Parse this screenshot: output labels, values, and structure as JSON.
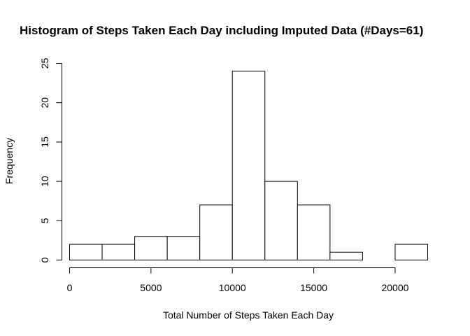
{
  "chart_data": {
    "type": "histogram",
    "title": "Histogram of Steps Taken Each Day including Imputed Data (#Days=61)",
    "xlabel": "Total Number of Steps Taken Each Day",
    "ylabel": "Frequency",
    "bins": [
      {
        "start": 0,
        "end": 2000,
        "count": 2
      },
      {
        "start": 2000,
        "end": 4000,
        "count": 2
      },
      {
        "start": 4000,
        "end": 6000,
        "count": 3
      },
      {
        "start": 6000,
        "end": 8000,
        "count": 3
      },
      {
        "start": 8000,
        "end": 10000,
        "count": 7
      },
      {
        "start": 10000,
        "end": 12000,
        "count": 24
      },
      {
        "start": 12000,
        "end": 14000,
        "count": 10
      },
      {
        "start": 14000,
        "end": 16000,
        "count": 7
      },
      {
        "start": 16000,
        "end": 18000,
        "count": 1
      },
      {
        "start": 18000,
        "end": 20000,
        "count": 0
      },
      {
        "start": 20000,
        "end": 22000,
        "count": 2
      }
    ],
    "xlim": [
      0,
      22000
    ],
    "ylim": [
      0,
      25
    ],
    "x_ticks": [
      0,
      5000,
      10000,
      15000,
      20000
    ],
    "y_ticks": [
      0,
      5,
      10,
      15,
      20,
      25
    ],
    "bar_fill": "#ffffff",
    "bar_stroke": "#000000",
    "grid": false,
    "legend": "none"
  }
}
